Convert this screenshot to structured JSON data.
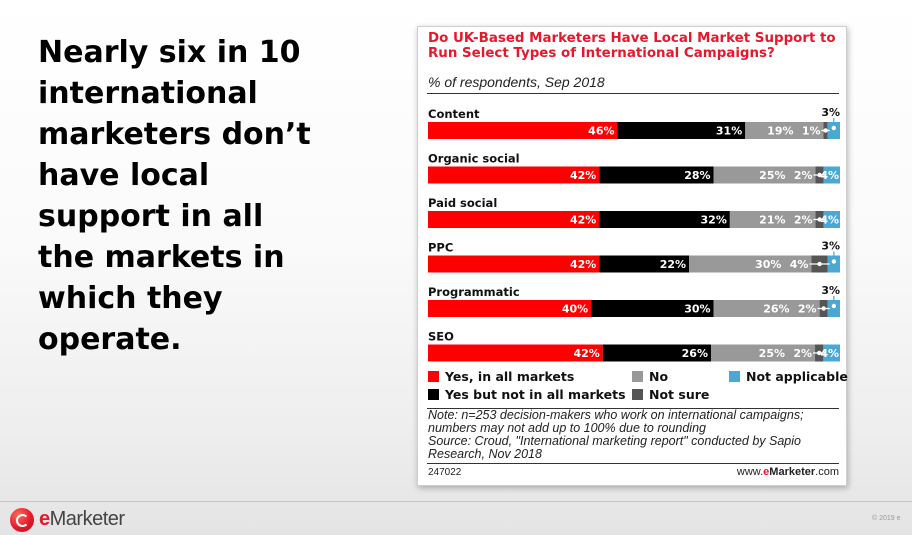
{
  "headline": [
    "Nearly six in 10",
    "international",
    "marketers don’t",
    "have local",
    "support in all",
    "the markets in",
    "which they",
    "operate."
  ],
  "card": {
    "title_lines": [
      "Do UK-Based Marketers Have Local Market Support to",
      "Run Select Types of International Campaigns?"
    ],
    "subtitle": "% of respondents, Sep 2018",
    "notes": [
      "Note: n=253 decision-makers who work on international campaigns;",
      "numbers may not add up to 100% due to rounding",
      "Source: Croud, \"International marketing report\" conducted by Sapio",
      "Research, Nov 2018"
    ],
    "chart_id": "247022",
    "site_prefix": "www.",
    "site_brand_e": "e",
    "site_brand_rest": "Marketer",
    "site_suffix": ".com"
  },
  "colors": {
    "yes_all": "#ff0000",
    "yes_not_all": "#000000",
    "no": "#999999",
    "not_sure": "#555555",
    "not_applicable": "#4aa8d4"
  },
  "chart_data": {
    "type": "bar",
    "orientation": "horizontal",
    "stacked": true,
    "title": "Do UK-Based Marketers Have Local Market Support to Run Select Types of International Campaigns?",
    "subtitle": "% of respondents, Sep 2018",
    "categories": [
      "Content",
      "Organic social",
      "Paid social",
      "PPC",
      "Programmatic",
      "SEO"
    ],
    "series": [
      {
        "name": "Yes, in all markets",
        "values": [
          46,
          42,
          42,
          42,
          40,
          42
        ],
        "labels": [
          "46%",
          "42%",
          "42%",
          "42%",
          "40%",
          "42%"
        ]
      },
      {
        "name": "Yes but not in all markets",
        "values": [
          31,
          28,
          32,
          22,
          30,
          26
        ],
        "labels": [
          "31%",
          "28%",
          "32%",
          "22%",
          "30%",
          "26%"
        ]
      },
      {
        "name": "No",
        "values": [
          19,
          25,
          21,
          30,
          26,
          25
        ],
        "labels": [
          "19%",
          "25%",
          "21%",
          "30%",
          "26%",
          "25%"
        ]
      },
      {
        "name": "Not sure",
        "values": [
          1,
          2,
          2,
          4,
          2,
          2
        ],
        "labels": [
          "1%",
          "2%",
          "2%",
          "4%",
          "2%",
          "2%"
        ]
      },
      {
        "name": "Not applicable",
        "values": [
          3,
          4,
          4,
          3,
          3,
          4
        ],
        "labels": [
          "3%",
          "4%",
          "4%",
          "3%",
          "3%",
          "4%"
        ]
      }
    ],
    "xlim": [
      0,
      100
    ],
    "grid": false,
    "legend": "bottom"
  },
  "footer": {
    "brand_e": "e",
    "brand_rest": "Marketer",
    "copyright": "© 2019 e"
  }
}
